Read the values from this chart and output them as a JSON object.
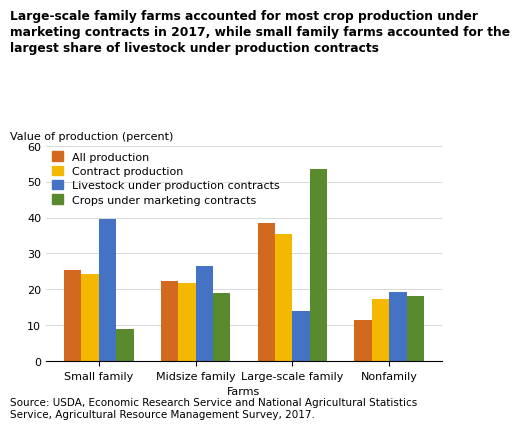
{
  "title_line1": "Large-scale family farms accounted for most crop production under",
  "title_line2": "marketing contracts in 2017, while small family farms accounted for the",
  "title_line3": "largest share of livestock under production contracts",
  "ylabel": "Value of production (percent)",
  "xlabel": "Farms",
  "categories": [
    "Small family",
    "Midsize family",
    "Large-scale family",
    "Nonfamily"
  ],
  "series": {
    "All production": [
      25.5,
      22.2,
      38.5,
      11.5
    ],
    "Contract production": [
      24.2,
      21.8,
      35.5,
      17.2
    ],
    "Livestock under production contracts": [
      39.5,
      26.5,
      14.0,
      19.2
    ],
    "Crops under marketing contracts": [
      9.0,
      19.0,
      53.5,
      18.0
    ]
  },
  "colors": {
    "All production": "#d2691e",
    "Contract production": "#f5b800",
    "Livestock under production contracts": "#4472c4",
    "Crops under marketing contracts": "#5a8a2e"
  },
  "ylim": [
    0,
    60
  ],
  "yticks": [
    0,
    10,
    20,
    30,
    40,
    50,
    60
  ],
  "source": "Source: USDA, Economic Research Service and National Agricultural Statistics\nService, Agricultural Resource Management Survey, 2017.",
  "title_fontsize": 8.8,
  "label_fontsize": 8.0,
  "tick_fontsize": 8.0,
  "legend_fontsize": 8.0,
  "source_fontsize": 7.5
}
